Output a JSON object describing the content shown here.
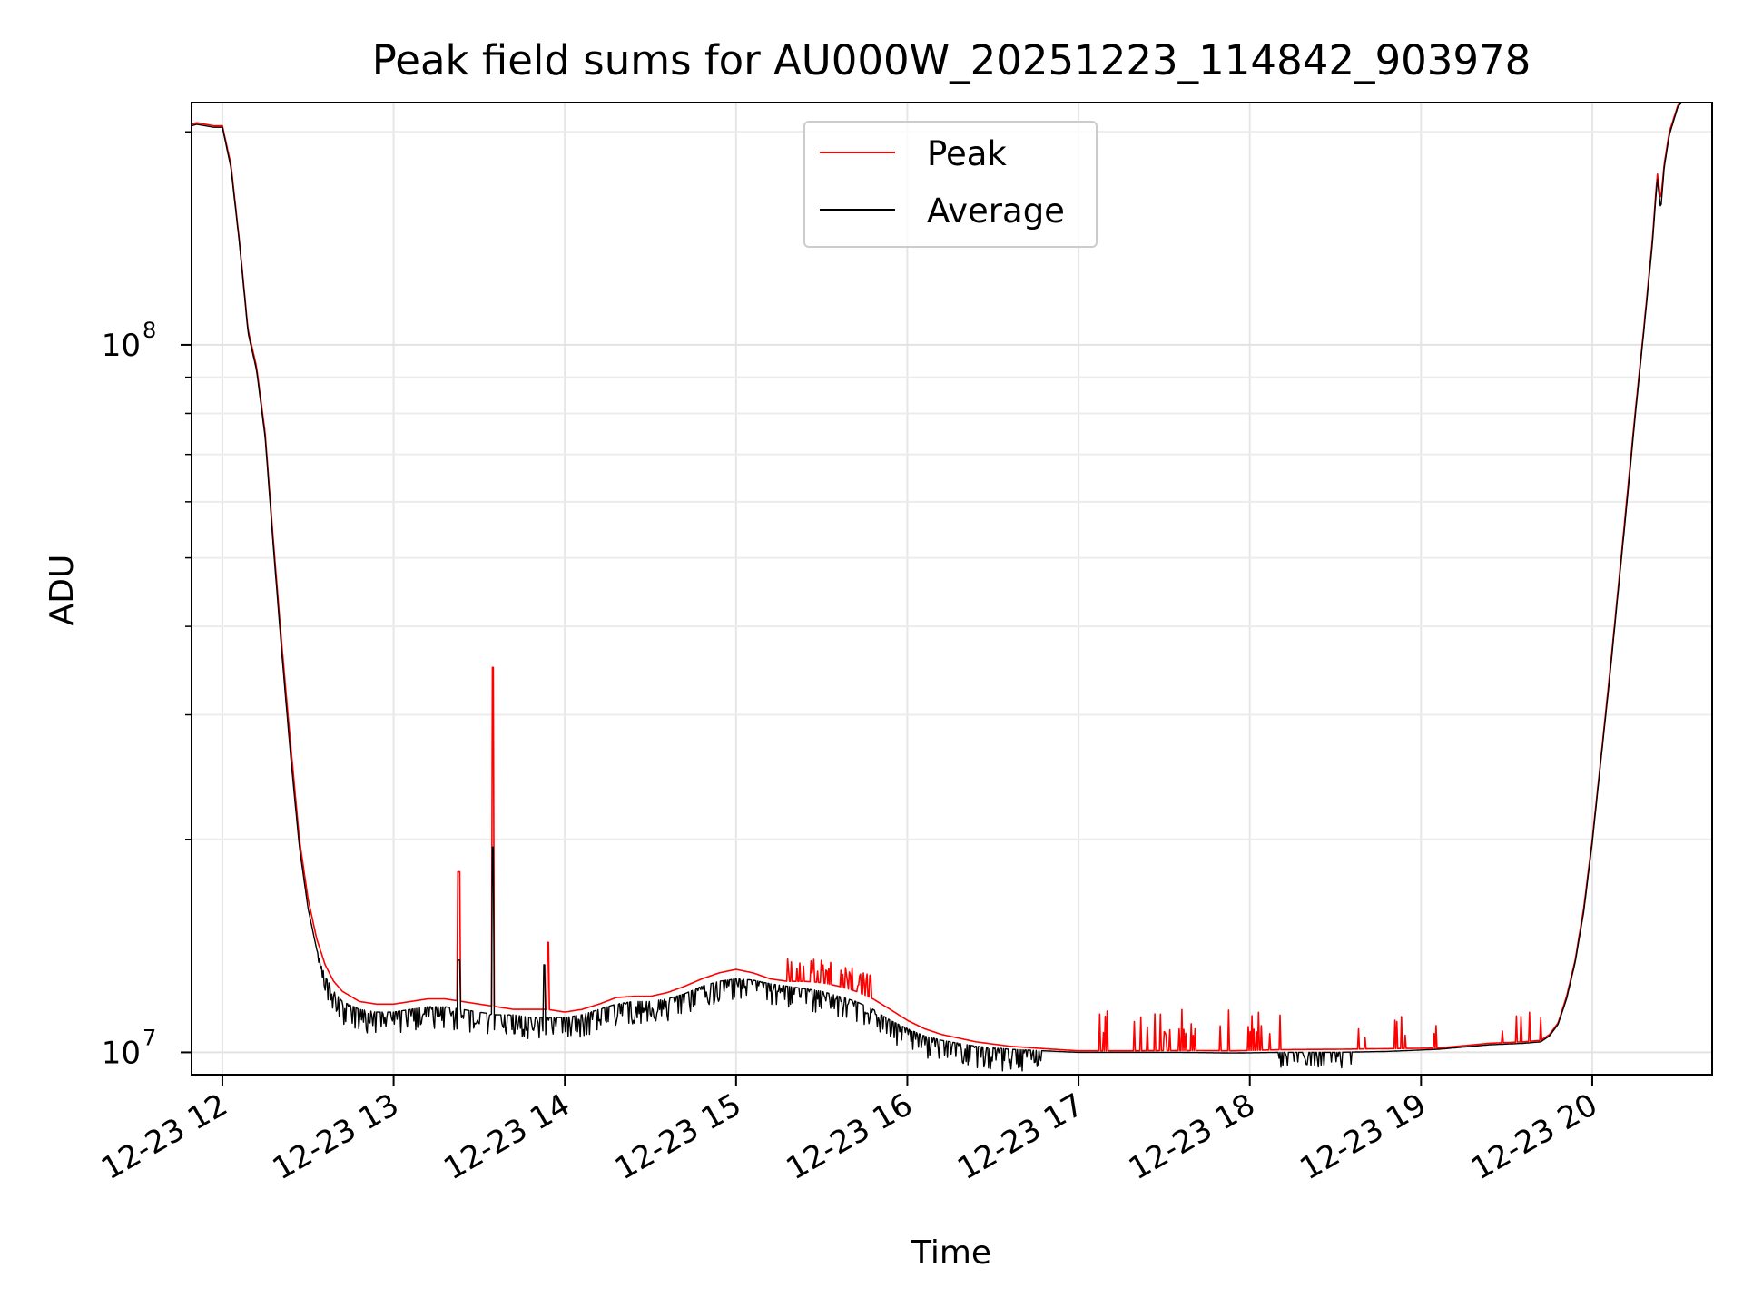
{
  "chart_data": {
    "type": "line",
    "title": "Peak field sums for AU000W_20251223_114842_903978",
    "xlabel": "Time",
    "ylabel": "ADU",
    "yscale": "log",
    "xlim_hours": [
      11.82,
      20.7
    ],
    "ylim": [
      9300000,
      220000000
    ],
    "xticks": [
      {
        "value": 12,
        "label": "12-23 12"
      },
      {
        "value": 13,
        "label": "12-23 13"
      },
      {
        "value": 14,
        "label": "12-23 14"
      },
      {
        "value": 15,
        "label": "12-23 15"
      },
      {
        "value": 16,
        "label": "12-23 16"
      },
      {
        "value": 17,
        "label": "12-23 17"
      },
      {
        "value": 18,
        "label": "12-23 18"
      },
      {
        "value": 19,
        "label": "12-23 19"
      },
      {
        "value": 20,
        "label": "12-23 20"
      }
    ],
    "yticks": [
      {
        "value": 10000000,
        "base": "10",
        "exp": "7"
      },
      {
        "value": 100000000,
        "base": "10",
        "exp": "8"
      }
    ],
    "grid": true,
    "legend_position": "upper-center",
    "series": [
      {
        "name": "Peak",
        "color": "#ff0000",
        "x": [
          11.82,
          11.85,
          11.9,
          11.95,
          12.0,
          12.05,
          12.1,
          12.15,
          12.2,
          12.25,
          12.3,
          12.35,
          12.4,
          12.45,
          12.5,
          12.55,
          12.6,
          12.65,
          12.7,
          12.8,
          12.9,
          13.0,
          13.1,
          13.2,
          13.3,
          13.4,
          13.5,
          13.6,
          13.7,
          13.8,
          13.9,
          14.0,
          14.1,
          14.2,
          14.3,
          14.4,
          14.5,
          14.6,
          14.7,
          14.8,
          14.9,
          15.0,
          15.1,
          15.2,
          15.3,
          15.4,
          15.5,
          15.6,
          15.7,
          15.8,
          15.9,
          16.0,
          16.1,
          16.2,
          16.4,
          16.6,
          16.8,
          17.0,
          17.3,
          17.6,
          17.9,
          18.2,
          18.5,
          18.8,
          19.1,
          19.4,
          19.6,
          19.7,
          19.75,
          19.8,
          19.85,
          19.9,
          19.95,
          20.0,
          20.05,
          20.1,
          20.15,
          20.2,
          20.25,
          20.3,
          20.35,
          20.38,
          20.4,
          20.42,
          20.45,
          20.5,
          20.55
        ],
        "y": [
          205000000,
          206000000,
          205000000,
          204000000,
          204000000,
          180000000,
          140000000,
          105000000,
          93000000,
          75000000,
          52000000,
          37000000,
          27000000,
          20000000,
          16500000,
          14500000,
          13300000,
          12600000,
          12200000,
          11800000,
          11700000,
          11700000,
          11800000,
          11900000,
          11900000,
          11800000,
          11700000,
          11600000,
          11500000,
          11500000,
          11500000,
          11400000,
          11500000,
          11700000,
          11950000,
          12000000,
          12000000,
          12150000,
          12400000,
          12700000,
          12950000,
          13100000,
          12950000,
          12700000,
          12600000,
          12600000,
          12550000,
          12400000,
          12200000,
          11900000,
          11500000,
          11100000,
          10800000,
          10600000,
          10350000,
          10200000,
          10120000,
          10050000,
          10050000,
          10060000,
          10050000,
          10090000,
          10100000,
          10120000,
          10140000,
          10300000,
          10350000,
          10400000,
          10600000,
          11000000,
          12000000,
          13500000,
          16000000,
          20000000,
          26000000,
          34000000,
          45000000,
          60000000,
          80000000,
          105000000,
          140000000,
          175000000,
          160000000,
          180000000,
          200000000,
          218000000,
          225000000
        ]
      },
      {
        "name": "Average",
        "color": "#000000",
        "x": [
          11.82,
          11.85,
          11.9,
          11.95,
          12.0,
          12.05,
          12.1,
          12.15,
          12.2,
          12.25,
          12.3,
          12.35,
          12.4,
          12.45,
          12.5,
          12.55,
          12.6,
          12.65,
          12.7,
          12.8,
          12.9,
          13.0,
          13.1,
          13.2,
          13.3,
          13.4,
          13.5,
          13.6,
          13.7,
          13.8,
          13.9,
          14.0,
          14.1,
          14.2,
          14.3,
          14.4,
          14.5,
          14.6,
          14.7,
          14.8,
          14.9,
          15.0,
          15.1,
          15.2,
          15.3,
          15.4,
          15.5,
          15.6,
          15.7,
          15.8,
          15.9,
          16.0,
          16.1,
          16.2,
          16.4,
          16.6,
          16.8,
          17.0,
          17.3,
          17.6,
          17.9,
          18.2,
          18.5,
          18.8,
          19.1,
          19.4,
          19.6,
          19.7,
          19.75,
          19.8,
          19.85,
          19.9,
          19.95,
          20.0,
          20.05,
          20.1,
          20.15,
          20.2,
          20.25,
          20.3,
          20.35,
          20.38,
          20.4,
          20.42,
          20.45,
          20.5,
          20.55
        ],
        "y": [
          204000000,
          205000000,
          204000000,
          203000000,
          203000000,
          178000000,
          139000000,
          104000000,
          92000000,
          74000000,
          51000000,
          36000000,
          26000000,
          19500000,
          16000000,
          14000000,
          12800000,
          12200000,
          11800000,
          11500000,
          11400000,
          11400000,
          11500000,
          11600000,
          11600000,
          11500000,
          11400000,
          11300000,
          11300000,
          11200000,
          11200000,
          11200000,
          11300000,
          11500000,
          11700000,
          11800000,
          11800000,
          11900000,
          12100000,
          12400000,
          12600000,
          12700000,
          12650000,
          12500000,
          12400000,
          12300000,
          12200000,
          12000000,
          11800000,
          11500000,
          11100000,
          10800000,
          10550000,
          10400000,
          10200000,
          10100000,
          10050000,
          10000000,
          10000000,
          10000000,
          9980000,
          10000000,
          10000000,
          10030000,
          10100000,
          10250000,
          10300000,
          10350000,
          10550000,
          10950000,
          11900000,
          13400000,
          15800000,
          19800000,
          25800000,
          33500000,
          44500000,
          59000000,
          79000000,
          104000000,
          138000000,
          172000000,
          155000000,
          178000000,
          198000000,
          217000000,
          224000000
        ]
      }
    ],
    "annotations": [
      {
        "series": "Peak",
        "x": 13.38,
        "value": 18000000,
        "note": "spike"
      },
      {
        "series": "Peak",
        "x": 13.58,
        "value": 35000000,
        "note": "spike"
      },
      {
        "series": "Peak",
        "x": 13.9,
        "value": 14300000,
        "note": "spike"
      },
      {
        "series": "Average",
        "x": 13.38,
        "value": 13500000,
        "note": "spike"
      },
      {
        "series": "Average",
        "x": 13.58,
        "value": 19500000,
        "note": "spike"
      },
      {
        "series": "Average",
        "x": 13.88,
        "value": 13300000,
        "note": "spike"
      }
    ]
  }
}
